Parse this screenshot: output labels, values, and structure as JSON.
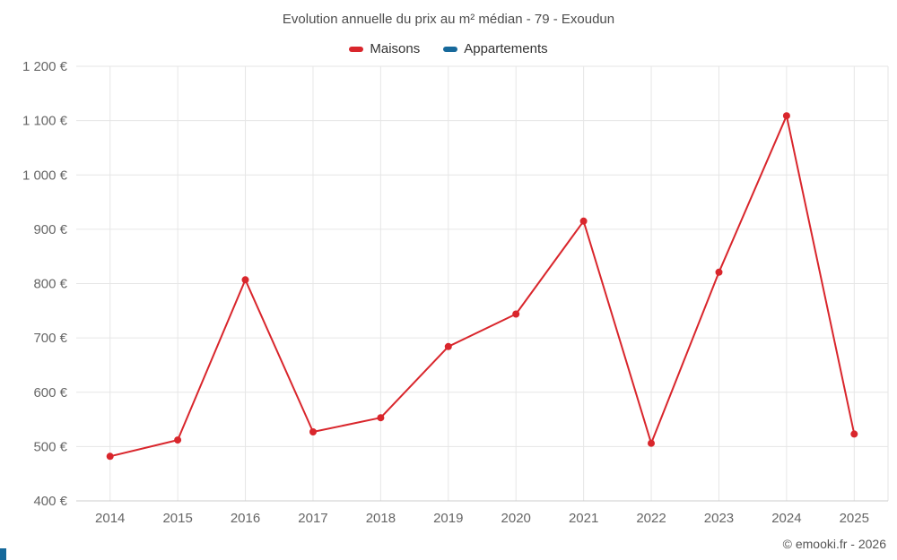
{
  "page": {
    "title": "Evolution annuelle du prix au m² médian - 79 - Exoudun",
    "watermark": "© emooki.fr - 2026"
  },
  "colors": {
    "maisons": "#d9262c",
    "appartements": "#17699b",
    "grid": "#e6e6e6",
    "axis_line": "#cccccc",
    "title_text": "#4d4d4d",
    "axis_text": "#666666",
    "legend_text": "#333333",
    "watermark_text": "#555555",
    "corner_accent": "#16699b",
    "background": "#ffffff"
  },
  "chart_data": {
    "type": "line",
    "title": "Evolution annuelle du prix au m² médian - 79 - Exoudun",
    "categories": [
      "2014",
      "2015",
      "2016",
      "2017",
      "2018",
      "2019",
      "2020",
      "2021",
      "2022",
      "2023",
      "2024",
      "2025"
    ],
    "series": [
      {
        "name": "Maisons",
        "color": "#d9262c",
        "values": [
          482,
          512,
          807,
          527,
          553,
          684,
          744,
          915,
          506,
          821,
          1109,
          523
        ]
      },
      {
        "name": "Appartements",
        "color": "#17699b",
        "values": []
      }
    ],
    "xlabel": "",
    "ylabel": "",
    "ylim": [
      400,
      1200
    ],
    "ytick_step": 100,
    "ytick_suffix": " €",
    "grid": true,
    "legend_position": "top",
    "marker_radius": 4
  }
}
